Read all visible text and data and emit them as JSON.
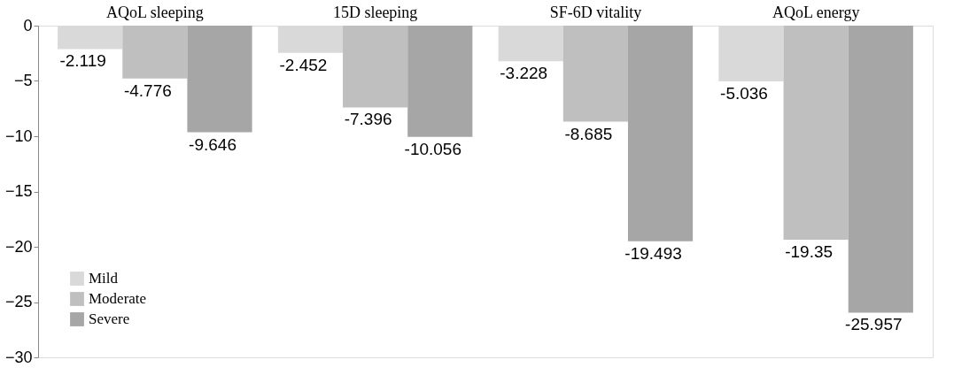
{
  "chart_data": {
    "type": "bar",
    "categories": [
      "AQoL sleeping",
      "15D sleeping",
      "SF-6D vitality",
      "AQoL energy"
    ],
    "series": [
      {
        "name": "Mild",
        "color": "#d9d9d9",
        "values": [
          -2.119,
          -2.452,
          -3.228,
          -5.036
        ]
      },
      {
        "name": "Moderate",
        "color": "#bfbfbf",
        "values": [
          -4.776,
          -7.396,
          -8.685,
          -19.35
        ]
      },
      {
        "name": "Severe",
        "color": "#a6a6a6",
        "values": [
          -9.646,
          -10.056,
          -19.493,
          -25.957
        ]
      }
    ],
    "ylim": [
      -30,
      0
    ],
    "yticks": [
      0,
      -5,
      -10,
      -15,
      -20,
      -25,
      -30
    ],
    "data_labels": true,
    "legend": "bottom left"
  }
}
